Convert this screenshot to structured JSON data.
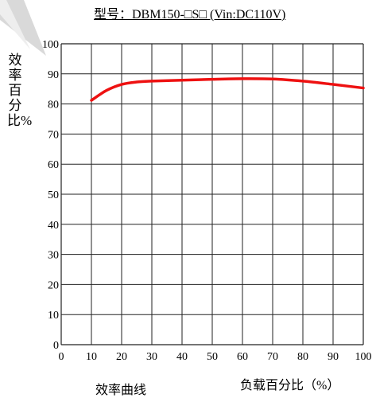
{
  "title": "型号：DBM150-□S□ (Vin:DC110V)",
  "ylabel": "效率百分比%",
  "xlabel": "负载百分比（%）",
  "caption": "效率曲线",
  "chart_data": {
    "type": "line",
    "title": "型号：DBM150-□S□ (Vin:DC110V)",
    "xlabel": "负载百分比（%）",
    "ylabel": "效率百分比%",
    "xlim": [
      0,
      100
    ],
    "ylim": [
      0,
      100
    ],
    "xticks": [
      0,
      10,
      20,
      30,
      40,
      50,
      60,
      70,
      80,
      90,
      100
    ],
    "yticks": [
      0,
      10,
      20,
      30,
      40,
      50,
      60,
      70,
      80,
      90,
      100
    ],
    "grid": true,
    "series": [
      {
        "color": "#ee1111",
        "x": [
          10,
          15,
          20,
          25,
          30,
          40,
          50,
          60,
          70,
          80,
          90,
          100
        ],
        "y": [
          81.2,
          84.5,
          86.5,
          87.3,
          87.6,
          87.9,
          88.2,
          88.4,
          88.3,
          87.6,
          86.5,
          85.3
        ]
      }
    ]
  }
}
